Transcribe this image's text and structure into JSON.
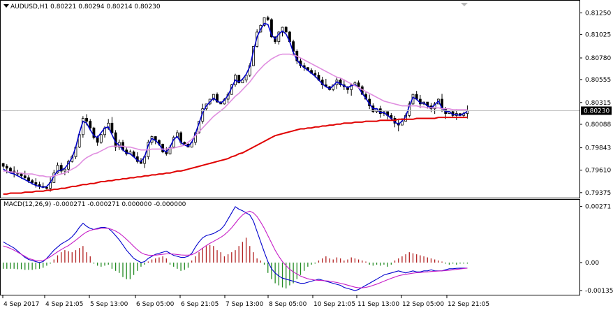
{
  "header": {
    "symbol": "AUDUSD,H1",
    "open": "0.80221",
    "high": "0.80294",
    "low": "0.80214",
    "close": "0.80230"
  },
  "macd_header": {
    "name": "MACD(12,26,9)",
    "main": "-0.000271",
    "signal": "-0.000271",
    "v3": "0.000000",
    "v4": "-0.000000"
  },
  "current_price": "0.80230",
  "colors": {
    "candles": "#000000",
    "fast_ma": "#0000c8",
    "mid_ma": "#e08ee0",
    "slow_ma": "#e00000",
    "macd_up": "#b22222",
    "macd_down": "#228b22",
    "macd_main": "#0000cd",
    "macd_signal": "#c71ec7"
  },
  "chart_data": [
    {
      "type": "candlestick",
      "title": "AUDUSD,H1",
      "y_ticks": [
        "0.81250",
        "0.81025",
        "0.80780",
        "0.80555",
        "0.80315",
        "0.80088",
        "0.79843",
        "0.79610",
        "0.79375"
      ],
      "ylim": [
        0.7933,
        0.8137
      ],
      "x_ticks": [
        "4 Sep 2017",
        "4 Sep 21:05",
        "5 Sep 13:00",
        "6 Sep 05:00",
        "6 Sep 21:05",
        "7 Sep 13:00",
        "8 Sep 05:00",
        "10 Sep 21:05",
        "11 Sep 13:00",
        "12 Sep 05:00",
        "12 Sep 21:05"
      ],
      "close_series": [
        0.7965,
        0.7963,
        0.796,
        0.7958,
        0.7957,
        0.7955,
        0.7953,
        0.795,
        0.7948,
        0.7946,
        0.7944,
        0.7943,
        0.7942,
        0.7948,
        0.7958,
        0.7966,
        0.796,
        0.7962,
        0.797,
        0.7975,
        0.7985,
        0.7998,
        0.8015,
        0.8012,
        0.8005,
        0.7995,
        0.799,
        0.7998,
        0.8005,
        0.801,
        0.8,
        0.7985,
        0.799,
        0.7982,
        0.7978,
        0.798,
        0.7975,
        0.797,
        0.7968,
        0.7975,
        0.799,
        0.7996,
        0.7992,
        0.7988,
        0.798,
        0.7978,
        0.7985,
        0.7995,
        0.8,
        0.799,
        0.7988,
        0.7985,
        0.799,
        0.8,
        0.8012,
        0.8025,
        0.803,
        0.8035,
        0.804,
        0.8032,
        0.803,
        0.8035,
        0.804,
        0.805,
        0.806,
        0.8052,
        0.8055,
        0.806,
        0.807,
        0.809,
        0.8105,
        0.8112,
        0.812,
        0.8118,
        0.81,
        0.8095,
        0.8105,
        0.811,
        0.8105,
        0.8095,
        0.8085,
        0.8075,
        0.807,
        0.8068,
        0.8065,
        0.8062,
        0.806,
        0.8055,
        0.805,
        0.8048,
        0.8045,
        0.805,
        0.8055,
        0.805,
        0.8048,
        0.8045,
        0.805,
        0.8052,
        0.8048,
        0.804,
        0.8035,
        0.8028,
        0.8022,
        0.8025,
        0.802,
        0.8022,
        0.8018,
        0.8015,
        0.801,
        0.8008,
        0.8012,
        0.8018,
        0.803,
        0.804,
        0.8035,
        0.803,
        0.8032,
        0.8028,
        0.8025,
        0.803,
        0.8035,
        0.8025,
        0.802,
        0.8022,
        0.8018,
        0.802,
        0.8018,
        0.802,
        0.8023
      ],
      "series": [
        {
          "name": "fast_ma",
          "values": [
            0.7962,
            0.796,
            0.7958,
            0.7957,
            0.7955,
            0.7953,
            0.7951,
            0.7949,
            0.7947,
            0.7945,
            0.7944,
            0.7943,
            0.7944,
            0.7948,
            0.7955,
            0.796,
            0.7961,
            0.7963,
            0.7968,
            0.7974,
            0.7985,
            0.8,
            0.8012,
            0.801,
            0.8003,
            0.7997,
            0.7995,
            0.8,
            0.8005,
            0.8006,
            0.7998,
            0.799,
            0.7987,
            0.7982,
            0.7979,
            0.7978,
            0.7975,
            0.7971,
            0.797,
            0.7975,
            0.7987,
            0.7994,
            0.7992,
            0.7988,
            0.7982,
            0.798,
            0.7985,
            0.7993,
            0.7996,
            0.799,
            0.7987,
            0.7986,
            0.799,
            0.7999,
            0.801,
            0.8021,
            0.8028,
            0.8032,
            0.8036,
            0.8033,
            0.8031,
            0.8034,
            0.8039,
            0.8047,
            0.8055,
            0.8053,
            0.8056,
            0.8061,
            0.8069,
            0.8085,
            0.81,
            0.8108,
            0.8114,
            0.8113,
            0.8102,
            0.8098,
            0.8103,
            0.8106,
            0.8103,
            0.8095,
            0.8084,
            0.8076,
            0.8071,
            0.8068,
            0.8065,
            0.8062,
            0.8059,
            0.8055,
            0.8051,
            0.8048,
            0.8046,
            0.8049,
            0.8053,
            0.8051,
            0.8049,
            0.8047,
            0.8049,
            0.805,
            0.8047,
            0.8041,
            0.8036,
            0.803,
            0.8025,
            0.8025,
            0.8021,
            0.8021,
            0.8018,
            0.8015,
            0.8011,
            0.8009,
            0.8012,
            0.8017,
            0.8028,
            0.8037,
            0.8035,
            0.8031,
            0.8031,
            0.8028,
            0.8026,
            0.8029,
            0.8033,
            0.8026,
            0.8022,
            0.8022,
            0.8019,
            0.8019,
            0.8018,
            0.802,
            0.8022
          ]
        },
        {
          "name": "mid_ma",
          "values": [
            0.796,
            0.796,
            0.7959,
            0.7959,
            0.7958,
            0.7958,
            0.7957,
            0.7957,
            0.7957,
            0.7956,
            0.7955,
            0.7955,
            0.7954,
            0.7954,
            0.7955,
            0.7956,
            0.7957,
            0.7958,
            0.796,
            0.7962,
            0.7964,
            0.7967,
            0.7971,
            0.7974,
            0.7976,
            0.7978,
            0.7979,
            0.7981,
            0.7983,
            0.7985,
            0.7986,
            0.7986,
            0.7986,
            0.7986,
            0.7985,
            0.7985,
            0.7984,
            0.7983,
            0.7982,
            0.7982,
            0.7982,
            0.7983,
            0.7983,
            0.7983,
            0.7983,
            0.7983,
            0.7984,
            0.7984,
            0.7985,
            0.7986,
            0.7987,
            0.799,
            0.7993,
            0.7997,
            0.8001,
            0.8005,
            0.8009,
            0.8013,
            0.8017,
            0.802,
            0.8023,
            0.8026,
            0.803,
            0.8034,
            0.8038,
            0.8041,
            0.8045,
            0.8049,
            0.8053,
            0.8058,
            0.8063,
            0.8067,
            0.8071,
            0.8074,
            0.8077,
            0.8079,
            0.8081,
            0.8082,
            0.8082,
            0.8082,
            0.8081,
            0.808,
            0.8078,
            0.8076,
            0.8074,
            0.8072,
            0.807,
            0.8068,
            0.8066,
            0.8064,
            0.8062,
            0.806,
            0.8058,
            0.8057,
            0.8055,
            0.8053,
            0.8051,
            0.8049,
            0.8047,
            0.8045,
            0.8043,
            0.8041,
            0.8039,
            0.8037,
            0.8035,
            0.8033,
            0.8032,
            0.8031,
            0.803,
            0.8029,
            0.8028,
            0.8028,
            0.8028,
            0.8028,
            0.8028,
            0.8027,
            0.8027,
            0.8026,
            0.8026,
            0.8026,
            0.8026,
            0.8025,
            0.8025,
            0.8025,
            0.8024,
            0.8024,
            0.8024,
            0.8024,
            0.8024
          ]
        },
        {
          "name": "slow_ma",
          "values": [
            0.7936,
            0.7936,
            0.7937,
            0.7937,
            0.7937,
            0.7937,
            0.7938,
            0.7938,
            0.7938,
            0.7939,
            0.7939,
            0.7939,
            0.794,
            0.794,
            0.7941,
            0.7941,
            0.7942,
            0.7942,
            0.7943,
            0.7944,
            0.7944,
            0.7945,
            0.7946,
            0.7946,
            0.7947,
            0.7947,
            0.7948,
            0.7949,
            0.7949,
            0.795,
            0.795,
            0.7951,
            0.7951,
            0.7952,
            0.7952,
            0.7953,
            0.7953,
            0.7954,
            0.7954,
            0.7955,
            0.7955,
            0.7956,
            0.7956,
            0.7957,
            0.7957,
            0.7958,
            0.7958,
            0.7959,
            0.796,
            0.796,
            0.7961,
            0.7962,
            0.7963,
            0.7964,
            0.7965,
            0.7966,
            0.7967,
            0.7968,
            0.7969,
            0.797,
            0.7971,
            0.7972,
            0.7973,
            0.7975,
            0.7976,
            0.7978,
            0.7979,
            0.7981,
            0.7983,
            0.7985,
            0.7987,
            0.7989,
            0.7991,
            0.7993,
            0.7995,
            0.7997,
            0.7998,
            0.7999,
            0.8,
            0.8001,
            0.8002,
            0.8003,
            0.8004,
            0.8004,
            0.8005,
            0.8005,
            0.8006,
            0.8006,
            0.8007,
            0.8007,
            0.8008,
            0.8008,
            0.8009,
            0.8009,
            0.801,
            0.801,
            0.801,
            0.8011,
            0.8011,
            0.8011,
            0.8012,
            0.8012,
            0.8012,
            0.8012,
            0.8013,
            0.8013,
            0.8013,
            0.8013,
            0.8013,
            0.8014,
            0.8014,
            0.8014,
            0.8014,
            0.8014,
            0.8015,
            0.8015,
            0.8015,
            0.8015,
            0.8015,
            0.8015,
            0.8016,
            0.8016,
            0.8016,
            0.8016,
            0.8016,
            0.8016,
            0.8016,
            0.8016,
            0.8016
          ]
        }
      ]
    },
    {
      "type": "bar",
      "title": "MACD(12,26,9)",
      "y_ticks": [
        "0.00271",
        "0.00",
        "-0.001352"
      ],
      "ylim": [
        -0.00152,
        0.003
      ],
      "histogram": [
        -0.0003,
        -0.0003,
        -0.0003,
        -0.0003,
        -0.00032,
        -0.00032,
        -0.00035,
        -0.00035,
        -0.00035,
        -0.00032,
        -0.0003,
        -0.00025,
        -0.00015,
        -5e-05,
        0.00015,
        0.00035,
        0.0005,
        0.0006,
        0.00055,
        0.0005,
        0.0006,
        0.0007,
        0.0008,
        0.0005,
        0.0003,
        -5e-05,
        -0.00015,
        -0.0002,
        -0.00015,
        -0.0001,
        -0.0003,
        -0.0004,
        -0.0005,
        -0.0007,
        -0.0008,
        -0.0008,
        -0.0006,
        -0.0004,
        -0.0002,
        -0.0001,
        5e-05,
        0.00015,
        0.0002,
        0.00025,
        0.0003,
        0.0002,
        -0.0001,
        -0.0002,
        -0.0003,
        -0.0004,
        -0.00035,
        -0.00025,
        0.0001,
        0.0003,
        0.0005,
        0.0007,
        0.0008,
        0.00085,
        0.0008,
        0.0006,
        0.0005,
        0.0003,
        0.0004,
        0.0005,
        0.0006,
        0.0008,
        0.001,
        0.0012,
        0.0008,
        0.0005,
        0.0002,
        0.0001,
        -0.0001,
        -0.0005,
        -0.0008,
        -0.001,
        -0.0011,
        -0.0012,
        -0.00125,
        -0.0011,
        -0.001,
        -0.0008,
        -0.0006,
        -0.0004,
        -0.0002,
        -0.0001,
        -5e-05,
        0.0001,
        0.0002,
        0.0003,
        0.0002,
        0.00015,
        0.00025,
        0.0002,
        0.0001,
        0.00015,
        0.00025,
        0.0002,
        0.00015,
        0.0001,
        5e-05,
        -0.0001,
        -0.00015,
        -0.0001,
        -0.00015,
        -0.0001,
        -0.0002,
        -0.0001,
        0.0001,
        0.0002,
        0.0003,
        0.0004,
        0.0005,
        0.00045,
        0.0004,
        0.00035,
        0.0003,
        0.00025,
        0.0002,
        0.00015,
        0.0001,
        5e-05,
        -5e-05,
        -0.0001,
        -5e-05,
        -0.0001,
        -5e-05,
        -5e-05,
        -5e-05
      ],
      "series": [
        {
          "name": "main",
          "values": [
            0.001,
            0.0009,
            0.0008,
            0.0007,
            0.00055,
            0.0004,
            0.00025,
            0.00015,
            0.0001,
            5e-05,
            0.0,
            5e-05,
            0.0002,
            0.0004,
            0.0006,
            0.00075,
            0.0009,
            0.001,
            0.0011,
            0.00125,
            0.00145,
            0.0017,
            0.0019,
            0.00175,
            0.00165,
            0.0016,
            0.00165,
            0.0017,
            0.0017,
            0.00165,
            0.0015,
            0.0013,
            0.0011,
            0.00085,
            0.0006,
            0.0004,
            0.0002,
            0.0001,
            0.0,
            5e-05,
            0.0002,
            0.0003,
            0.0004,
            0.00045,
            0.0005,
            0.00055,
            0.00045,
            0.00035,
            0.0003,
            0.00025,
            0.00025,
            0.0003,
            0.00045,
            0.00075,
            0.001,
            0.0012,
            0.0013,
            0.00135,
            0.0014,
            0.0015,
            0.0016,
            0.0018,
            0.0021,
            0.0024,
            0.0027,
            0.00258,
            0.0025,
            0.0024,
            0.0023,
            0.002,
            0.0015,
            0.001,
            0.0005,
            5e-05,
            -0.0003,
            -0.0005,
            -0.00065,
            -0.00075,
            -0.0008,
            -0.00085,
            -0.0009,
            -0.00095,
            -0.001,
            -0.001,
            -0.00095,
            -0.0009,
            -0.00085,
            -0.0008,
            -0.00085,
            -0.0009,
            -0.00095,
            -0.001,
            -0.00105,
            -0.0011,
            -0.0012,
            -0.00125,
            -0.0013,
            -0.00135,
            -0.0013,
            -0.0012,
            -0.0011,
            -0.001,
            -0.0009,
            -0.0008,
            -0.0007,
            -0.0006,
            -0.00055,
            -0.0005,
            -0.00045,
            -0.0004,
            -0.00045,
            -0.0005,
            -0.00045,
            -0.0004,
            -0.00045,
            -0.00045,
            -0.0004,
            -0.0004,
            -0.00035,
            -0.0004,
            -0.0004,
            -0.0004,
            -0.00035,
            -0.0003,
            -0.0003,
            -0.00028,
            -0.00027,
            -0.00027,
            -0.00027
          ]
        },
        {
          "name": "signal",
          "values": [
            0.0008,
            0.00075,
            0.00068,
            0.0006,
            0.0005,
            0.0004,
            0.0003,
            0.0002,
            0.00015,
            0.0001,
            8e-05,
            0.0001,
            0.00018,
            0.00028,
            0.0004,
            0.00052,
            0.00063,
            0.00073,
            0.00082,
            0.00095,
            0.00108,
            0.00122,
            0.00136,
            0.00148,
            0.00155,
            0.0016,
            0.00162,
            0.00165,
            0.00166,
            0.00165,
            0.0016,
            0.00152,
            0.00142,
            0.00128,
            0.00112,
            0.00096,
            0.00078,
            0.00062,
            0.00048,
            0.0004,
            0.00036,
            0.00035,
            0.00036,
            0.00038,
            0.0004,
            0.00042,
            0.00042,
            0.00041,
            0.00039,
            0.00037,
            0.00036,
            0.00036,
            0.00038,
            0.00046,
            0.00057,
            0.0007,
            0.00082,
            0.00093,
            0.00102,
            0.00112,
            0.00122,
            0.00134,
            0.0015,
            0.00168,
            0.0019,
            0.00212,
            0.0023,
            0.00242,
            0.00248,
            0.0024,
            0.00222,
            0.00195,
            0.00165,
            0.0013,
            0.00095,
            0.0006,
            0.0003,
            5e-05,
            -0.00015,
            -0.00032,
            -0.00045,
            -0.00055,
            -0.00065,
            -0.00072,
            -0.00078,
            -0.00082,
            -0.00085,
            -0.00086,
            -0.00087,
            -0.00088,
            -0.0009,
            -0.00093,
            -0.00096,
            -0.001,
            -0.00104,
            -0.00109,
            -0.00114,
            -0.00119,
            -0.00122,
            -0.00122,
            -0.0012,
            -0.00116,
            -0.0011,
            -0.00104,
            -0.00097,
            -0.0009,
            -0.00083,
            -0.00076,
            -0.0007,
            -0.00064,
            -0.0006,
            -0.00057,
            -0.00054,
            -0.00051,
            -0.00049,
            -0.00048,
            -0.00046,
            -0.00045,
            -0.00043,
            -0.00042,
            -0.00041,
            -0.0004,
            -0.00039,
            -0.00037,
            -0.00035,
            -0.00033,
            -0.00031,
            -0.00029,
            -0.00027
          ]
        }
      ]
    }
  ]
}
